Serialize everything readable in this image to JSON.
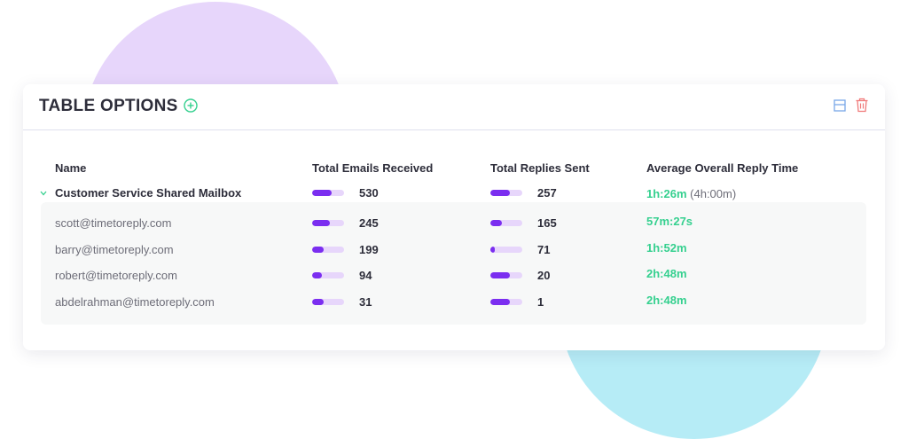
{
  "card": {
    "title": "TABLE OPTIONS"
  },
  "columns": {
    "name": "Name",
    "emails": "Total Emails Received",
    "replies": "Total Replies Sent",
    "reply_time": "Average Overall Reply Time"
  },
  "icons": {
    "add": "plus-circle-icon",
    "layout": "layout-icon",
    "delete": "trash-icon",
    "expand": "chevron-down-icon"
  },
  "colors": {
    "accent_green": "#35d08f",
    "bar_fill": "#7b2ef0",
    "bar_track": "#e7d6fb",
    "delete_red": "#f07a7a",
    "layout_blue": "#7aa7e8"
  },
  "group": {
    "name": "Customer Service Shared Mailbox",
    "emails": "530",
    "emails_fill": 0.6,
    "replies": "257",
    "replies_fill": 0.6,
    "reply_time": "1h:26m",
    "reply_time_sub": "(4h:00m)"
  },
  "rows": [
    {
      "name": "scott@timetoreply.com",
      "emails": "245",
      "emails_fill": 0.55,
      "replies": "165",
      "replies_fill": 0.35,
      "reply_time": "57m:27s"
    },
    {
      "name": "barry@timetoreply.com",
      "emails": "199",
      "emails_fill": 0.35,
      "replies": "71",
      "replies_fill": 0.15,
      "reply_time": "1h:52m"
    },
    {
      "name": "robert@timetoreply.com",
      "emails": "94",
      "emails_fill": 0.3,
      "replies": "20",
      "replies_fill": 0.6,
      "reply_time": "2h:48m"
    },
    {
      "name": "abdelrahman@timetoreply.com",
      "emails": "31",
      "emails_fill": 0.35,
      "replies": "1",
      "replies_fill": 0.6,
      "reply_time": "2h:48m"
    }
  ]
}
